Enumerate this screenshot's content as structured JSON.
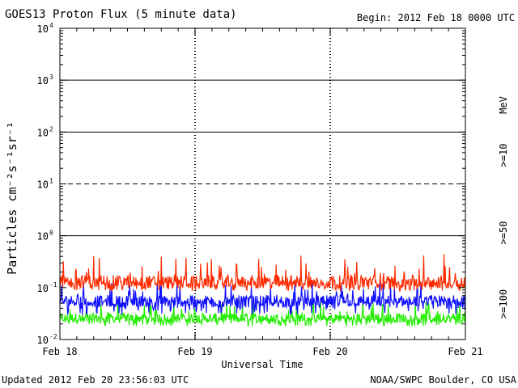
{
  "header": {
    "title": "GOES13 Proton Flux (5 minute data)",
    "begin": "Begin: 2012 Feb 18 0000 UTC"
  },
  "footer": {
    "updated": "Updated 2012 Feb 20 23:56:03 UTC",
    "source": "NOAA/SWPC Boulder, CO USA"
  },
  "chart_data": {
    "type": "line",
    "title": "GOES13 Proton Flux (5 minute data)",
    "xlabel": "Universal Time",
    "ylabel": "Particles cm⁻²s⁻¹sr⁻¹",
    "y_scale": "log",
    "ylim": [
      0.01,
      10000
    ],
    "y_ticks": [
      {
        "base": "10",
        "exp": "4"
      },
      {
        "base": "10",
        "exp": "3"
      },
      {
        "base": "10",
        "exp": "2"
      },
      {
        "base": "10",
        "exp": "1"
      },
      {
        "base": "10",
        "exp": "0"
      },
      {
        "base": "10",
        "exp": "-1"
      },
      {
        "base": "10",
        "exp": "-2"
      }
    ],
    "x_ticks": [
      "Feb 18",
      "Feb 19",
      "Feb 20",
      "Feb 21"
    ],
    "xlim": [
      "2012-02-18",
      "2012-02-21"
    ],
    "energy_unit": "MeV",
    "grid": true,
    "series": [
      {
        "name": ">=10",
        "color": "#ff2a00",
        "baseline": 0.13,
        "range": [
          0.085,
          0.45
        ]
      },
      {
        "name": ">=50",
        "color": "#1010ff",
        "baseline": 0.055,
        "range": [
          0.03,
          0.13
        ]
      },
      {
        "name": ">=100",
        "color": "#22ee00",
        "baseline": 0.026,
        "range": [
          0.018,
          0.06
        ]
      }
    ],
    "reference_lines": [
      {
        "value": 1000,
        "style": "solid"
      },
      {
        "value": 100,
        "style": "solid"
      },
      {
        "value": 10,
        "style": "dashed"
      },
      {
        "value": 1,
        "style": "solid"
      }
    ]
  }
}
